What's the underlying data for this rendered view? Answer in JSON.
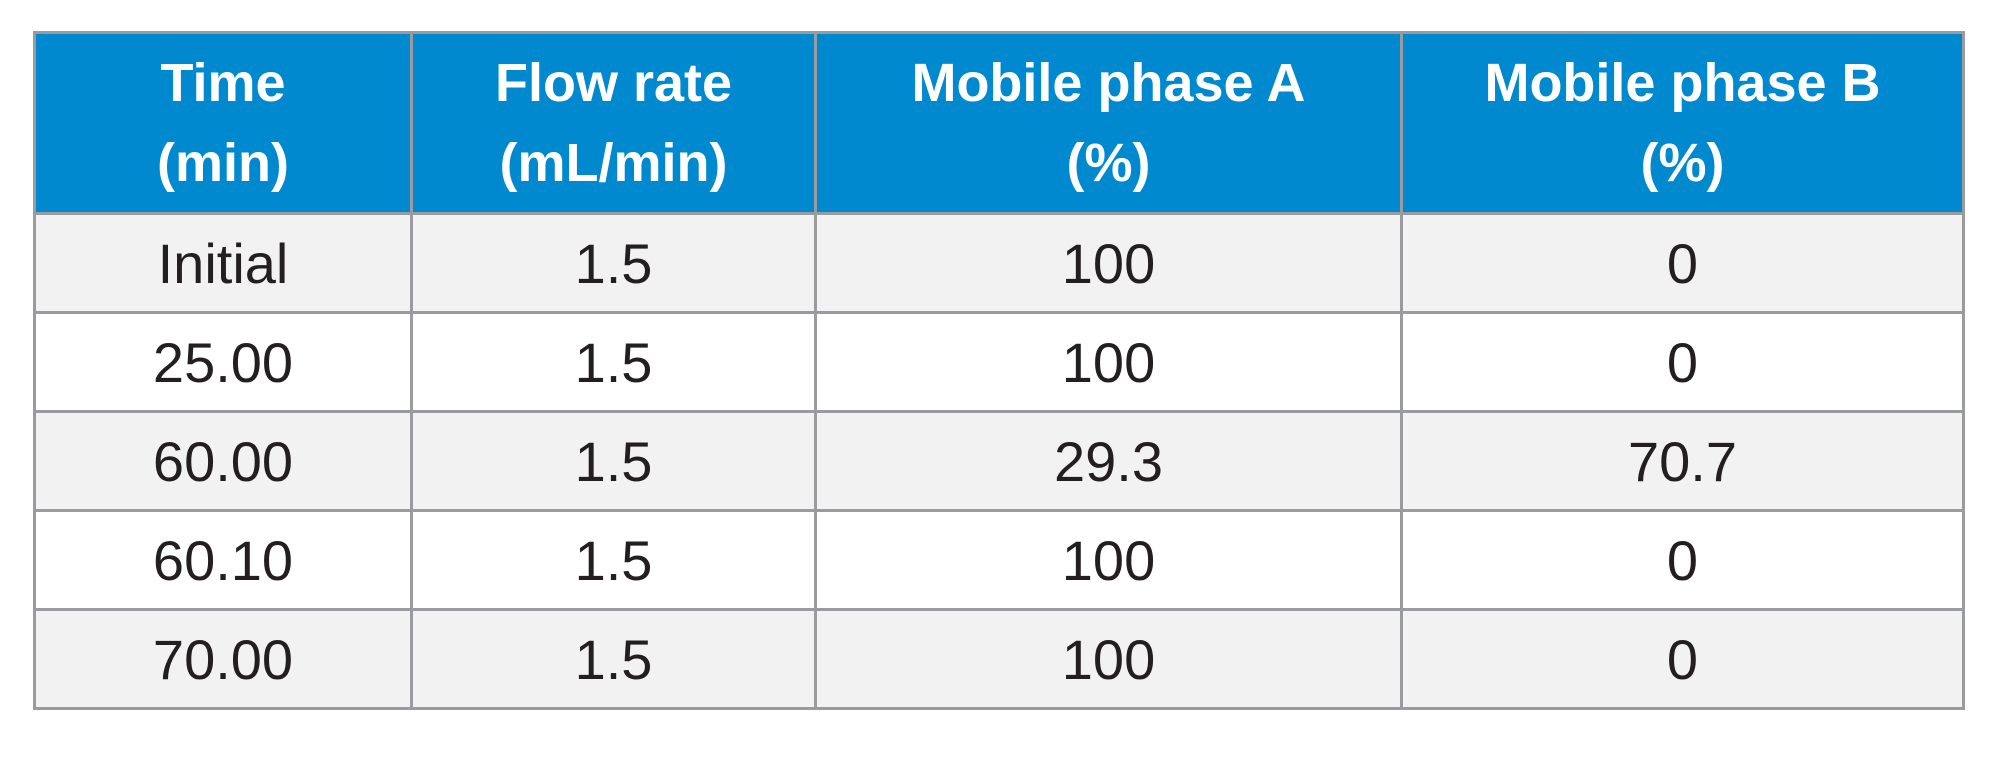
{
  "table": {
    "headers": [
      {
        "line1": "Time",
        "line2": "(min)"
      },
      {
        "line1": "Flow rate",
        "line2": "(mL/min)"
      },
      {
        "line1": "Mobile phase A",
        "line2": "(%)"
      },
      {
        "line1": "Mobile phase B",
        "line2": "(%)"
      }
    ],
    "rows": [
      [
        "Initial",
        "1.5",
        "100",
        "0"
      ],
      [
        "25.00",
        "1.5",
        "100",
        "0"
      ],
      [
        "60.00",
        "1.5",
        "29.3",
        "70.7"
      ],
      [
        "60.10",
        "1.5",
        "100",
        "0"
      ],
      [
        "70.00",
        "1.5",
        "100",
        "0"
      ]
    ]
  },
  "colors": {
    "header_bg": "#0089cf",
    "header_text": "#ffffff",
    "row_alt_bg": "#f2f2f3",
    "border": "#999b9e",
    "body_text": "#231f20"
  }
}
